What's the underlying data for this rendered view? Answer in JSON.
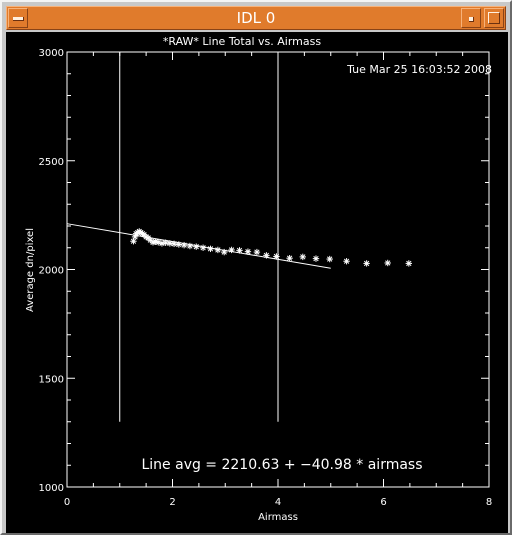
{
  "window": {
    "title": "IDL 0",
    "controls": {
      "menu_icon": "window-menu-icon",
      "minimize_icon": "minimize-icon",
      "maximize_icon": "maximize-icon"
    }
  },
  "plot": {
    "timestamp": "Tue Mar 25 16:03:52 2008",
    "annotation": "Line avg = 2210.63 + −40.98 * airmass"
  },
  "colors": {
    "titlebar": "#e07b2c",
    "background": "#000000",
    "foreground": "#ffffff"
  },
  "chart_data": {
    "type": "scatter",
    "title": "*RAW* Line Total vs. Airmass",
    "xlabel": "Airmass",
    "ylabel": "Average dn/pixel",
    "xlim": [
      0,
      8
    ],
    "ylim": [
      1000,
      3000
    ],
    "x_ticks": [
      {
        "value": 0,
        "label": "0"
      },
      {
        "value": 2,
        "label": "2"
      },
      {
        "value": 4,
        "label": "4"
      },
      {
        "value": 6,
        "label": "6"
      },
      {
        "value": 8,
        "label": "8"
      }
    ],
    "y_ticks": [
      {
        "value": 1000,
        "label": "1000"
      },
      {
        "value": 1500,
        "label": "1500"
      },
      {
        "value": 2000,
        "label": "2000"
      },
      {
        "value": 2500,
        "label": "2500"
      },
      {
        "value": 3000,
        "label": "3000"
      }
    ],
    "vertical_lines": [
      {
        "x": 1,
        "y_from": 1300,
        "y_to": 3000
      },
      {
        "x": 4,
        "y_from": 1300,
        "y_to": 3000
      }
    ],
    "fit_line": {
      "intercept": 2210.63,
      "slope": -40.98,
      "x_range": [
        0,
        5
      ]
    },
    "points": [
      {
        "x": 1.26,
        "y": 2130
      },
      {
        "x": 1.29,
        "y": 2150
      },
      {
        "x": 1.31,
        "y": 2165
      },
      {
        "x": 1.34,
        "y": 2170
      },
      {
        "x": 1.37,
        "y": 2175
      },
      {
        "x": 1.4,
        "y": 2170
      },
      {
        "x": 1.43,
        "y": 2165
      },
      {
        "x": 1.46,
        "y": 2160
      },
      {
        "x": 1.5,
        "y": 2150
      },
      {
        "x": 1.54,
        "y": 2145
      },
      {
        "x": 1.58,
        "y": 2135
      },
      {
        "x": 1.63,
        "y": 2125
      },
      {
        "x": 1.68,
        "y": 2128
      },
      {
        "x": 1.73,
        "y": 2125
      },
      {
        "x": 1.8,
        "y": 2120
      },
      {
        "x": 1.87,
        "y": 2123
      },
      {
        "x": 1.95,
        "y": 2120
      },
      {
        "x": 2.03,
        "y": 2118
      },
      {
        "x": 2.12,
        "y": 2115
      },
      {
        "x": 2.22,
        "y": 2112
      },
      {
        "x": 2.33,
        "y": 2108
      },
      {
        "x": 2.45,
        "y": 2105
      },
      {
        "x": 2.58,
        "y": 2100
      },
      {
        "x": 2.72,
        "y": 2095
      },
      {
        "x": 2.86,
        "y": 2090
      },
      {
        "x": 2.98,
        "y": 2080
      },
      {
        "x": 3.12,
        "y": 2090
      },
      {
        "x": 3.27,
        "y": 2088
      },
      {
        "x": 3.43,
        "y": 2082
      },
      {
        "x": 3.6,
        "y": 2080
      },
      {
        "x": 3.78,
        "y": 2065
      },
      {
        "x": 3.97,
        "y": 2060
      },
      {
        "x": 4.22,
        "y": 2052
      },
      {
        "x": 4.47,
        "y": 2058
      },
      {
        "x": 4.72,
        "y": 2050
      },
      {
        "x": 4.98,
        "y": 2048
      },
      {
        "x": 5.3,
        "y": 2038
      },
      {
        "x": 5.68,
        "y": 2028
      },
      {
        "x": 6.08,
        "y": 2030
      },
      {
        "x": 6.48,
        "y": 2028
      }
    ]
  }
}
